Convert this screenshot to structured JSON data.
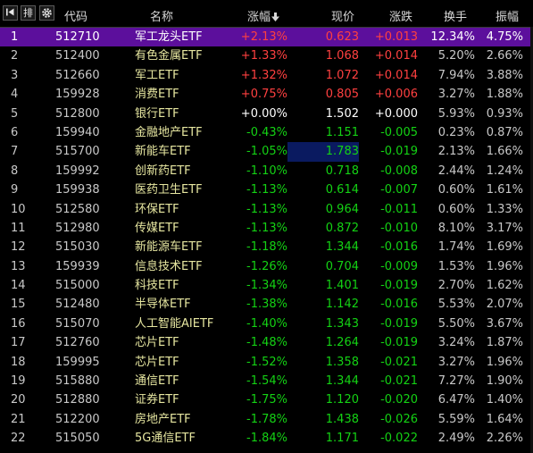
{
  "header": {
    "columns": {
      "code": "代码",
      "name": "名称",
      "pct": "涨幅",
      "price": "现价",
      "change": "涨跌",
      "turnover": "换手",
      "amplitude": "振幅"
    },
    "sort_column": "pct",
    "sort_direction": "desc",
    "buttons": {
      "back_icon": "first-page-icon",
      "rank_label": "排",
      "settings_icon": "gear-icon"
    }
  },
  "colors": {
    "up": "#ff4040",
    "down": "#14d214",
    "flat": "#ffffff",
    "selected_row": "#5c0f9c",
    "name_text": "#e6e6a0",
    "highlight_price": "#0a1a60"
  },
  "selected_row_index": 0,
  "highlighted_price_row_index": 6,
  "rows": [
    {
      "idx": "1",
      "code": "512710",
      "name": "军工龙头ETF",
      "pct": "+2.13%",
      "price": "0.623",
      "change": "+0.013",
      "turnover": "12.34%",
      "amplitude": "4.75%",
      "trend": "up"
    },
    {
      "idx": "2",
      "code": "512400",
      "name": "有色金属ETF",
      "pct": "+1.33%",
      "price": "1.068",
      "change": "+0.014",
      "turnover": "5.20%",
      "amplitude": "2.66%",
      "trend": "up"
    },
    {
      "idx": "3",
      "code": "512660",
      "name": "军工ETF",
      "pct": "+1.32%",
      "price": "1.072",
      "change": "+0.014",
      "turnover": "7.94%",
      "amplitude": "3.88%",
      "trend": "up"
    },
    {
      "idx": "4",
      "code": "159928",
      "name": "消费ETF",
      "pct": "+0.75%",
      "price": "0.805",
      "change": "+0.006",
      "turnover": "3.27%",
      "amplitude": "1.88%",
      "trend": "up"
    },
    {
      "idx": "5",
      "code": "512800",
      "name": "银行ETF",
      "pct": "+0.00%",
      "price": "1.502",
      "change": "+0.000",
      "turnover": "5.93%",
      "amplitude": "0.93%",
      "trend": "flat"
    },
    {
      "idx": "6",
      "code": "159940",
      "name": "金融地产ETF",
      "pct": "-0.43%",
      "price": "1.151",
      "change": "-0.005",
      "turnover": "0.23%",
      "amplitude": "0.87%",
      "trend": "down"
    },
    {
      "idx": "7",
      "code": "515700",
      "name": "新能车ETF",
      "pct": "-1.05%",
      "price": "1.783",
      "change": "-0.019",
      "turnover": "2.13%",
      "amplitude": "1.66%",
      "trend": "down"
    },
    {
      "idx": "8",
      "code": "159992",
      "name": "创新药ETF",
      "pct": "-1.10%",
      "price": "0.718",
      "change": "-0.008",
      "turnover": "2.44%",
      "amplitude": "1.24%",
      "trend": "down"
    },
    {
      "idx": "9",
      "code": "159938",
      "name": "医药卫生ETF",
      "pct": "-1.13%",
      "price": "0.614",
      "change": "-0.007",
      "turnover": "0.60%",
      "amplitude": "1.61%",
      "trend": "down"
    },
    {
      "idx": "10",
      "code": "512580",
      "name": "环保ETF",
      "pct": "-1.13%",
      "price": "0.964",
      "change": "-0.011",
      "turnover": "0.60%",
      "amplitude": "1.33%",
      "trend": "down"
    },
    {
      "idx": "11",
      "code": "512980",
      "name": "传媒ETF",
      "pct": "-1.13%",
      "price": "0.872",
      "change": "-0.010",
      "turnover": "8.10%",
      "amplitude": "3.17%",
      "trend": "down"
    },
    {
      "idx": "12",
      "code": "515030",
      "name": "新能源车ETF",
      "pct": "-1.18%",
      "price": "1.344",
      "change": "-0.016",
      "turnover": "1.74%",
      "amplitude": "1.69%",
      "trend": "down"
    },
    {
      "idx": "13",
      "code": "159939",
      "name": "信息技术ETF",
      "pct": "-1.26%",
      "price": "0.704",
      "change": "-0.009",
      "turnover": "1.53%",
      "amplitude": "1.96%",
      "trend": "down"
    },
    {
      "idx": "14",
      "code": "515000",
      "name": "科技ETF",
      "pct": "-1.34%",
      "price": "1.401",
      "change": "-0.019",
      "turnover": "2.70%",
      "amplitude": "1.62%",
      "trend": "down"
    },
    {
      "idx": "15",
      "code": "512480",
      "name": "半导体ETF",
      "pct": "-1.38%",
      "price": "1.142",
      "change": "-0.016",
      "turnover": "5.53%",
      "amplitude": "2.07%",
      "trend": "down"
    },
    {
      "idx": "16",
      "code": "515070",
      "name": "人工智能AIETF",
      "pct": "-1.40%",
      "price": "1.343",
      "change": "-0.019",
      "turnover": "5.50%",
      "amplitude": "3.67%",
      "trend": "down"
    },
    {
      "idx": "17",
      "code": "512760",
      "name": "芯片ETF",
      "pct": "-1.48%",
      "price": "1.264",
      "change": "-0.019",
      "turnover": "3.24%",
      "amplitude": "1.87%",
      "trend": "down"
    },
    {
      "idx": "18",
      "code": "159995",
      "name": "芯片ETF",
      "pct": "-1.52%",
      "price": "1.358",
      "change": "-0.021",
      "turnover": "3.27%",
      "amplitude": "1.96%",
      "trend": "down"
    },
    {
      "idx": "19",
      "code": "515880",
      "name": "通信ETF",
      "pct": "-1.54%",
      "price": "1.344",
      "change": "-0.021",
      "turnover": "7.27%",
      "amplitude": "1.90%",
      "trend": "down"
    },
    {
      "idx": "20",
      "code": "512880",
      "name": "证券ETF",
      "pct": "-1.75%",
      "price": "1.120",
      "change": "-0.020",
      "turnover": "6.47%",
      "amplitude": "1.40%",
      "trend": "down"
    },
    {
      "idx": "21",
      "code": "512200",
      "name": "房地产ETF",
      "pct": "-1.78%",
      "price": "1.438",
      "change": "-0.026",
      "turnover": "5.59%",
      "amplitude": "1.64%",
      "trend": "down"
    },
    {
      "idx": "22",
      "code": "515050",
      "name": "5G通信ETF",
      "pct": "-1.84%",
      "price": "1.171",
      "change": "-0.022",
      "turnover": "2.49%",
      "amplitude": "2.26%",
      "trend": "down"
    }
  ]
}
